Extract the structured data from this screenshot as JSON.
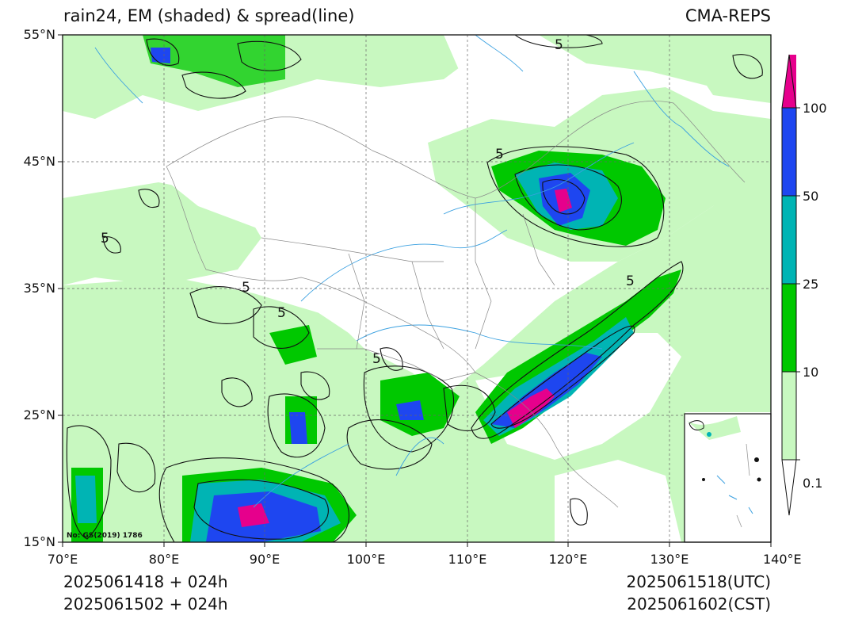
{
  "header": {
    "title": "rain24, EM (shaded) & spread(line)",
    "model": "CMA-REPS"
  },
  "axes": {
    "lat_labels": [
      "55°N",
      "45°N",
      "35°N",
      "25°N",
      "15°N"
    ],
    "lon_labels": [
      "70°E",
      "80°E",
      "90°E",
      "100°E",
      "110°E",
      "120°E",
      "130°E",
      "140°E"
    ],
    "lon_range": [
      70,
      140
    ],
    "lat_range": [
      15,
      55
    ]
  },
  "colorbar": {
    "labels": [
      "0.1",
      "10",
      "25",
      "50",
      "100"
    ],
    "colors": [
      "#ffffff",
      "#c8f8c0",
      "#00c800",
      "#00b4b4",
      "#1e46f0",
      "#e6008c"
    ]
  },
  "map_note": "No: GS(2019) 1786",
  "contour_label": "5",
  "footer": {
    "init_utc": "2025061418  +  024h",
    "init_cst": "2025061502  +  024h",
    "valid_utc": "2025061518(UTC)",
    "valid_cst": "2025061602(CST)"
  }
}
